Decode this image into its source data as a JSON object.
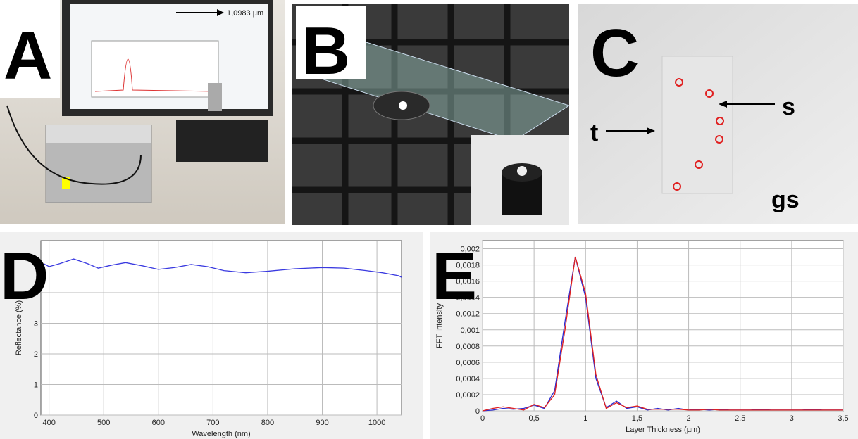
{
  "panels": {
    "A": {
      "label": "A",
      "readout": "1,0983 µm"
    },
    "B": {
      "label": "B"
    },
    "C": {
      "label": "C",
      "t": "t",
      "s": "s",
      "gs": "gs"
    }
  },
  "chart_data": [
    {
      "type": "line",
      "panel_label": "D",
      "x_label": "Wavelength (nm)",
      "y_label": "Reflectance (%)",
      "xlim": [
        385,
        1045
      ],
      "ylim": [
        0,
        5.7
      ],
      "xticks": [
        400,
        500,
        600,
        700,
        800,
        900,
        1000
      ],
      "yticks": [
        0,
        1,
        2,
        3,
        4,
        5
      ],
      "grid": true,
      "x": [
        390,
        400,
        420,
        445,
        470,
        490,
        515,
        540,
        570,
        600,
        630,
        660,
        690,
        720,
        760,
        800,
        850,
        900,
        940,
        980,
        1010,
        1040,
        1045
      ],
      "series": [
        {
          "color": "#3a3ae0",
          "values": [
            4.95,
            4.85,
            4.95,
            5.1,
            4.95,
            4.8,
            4.9,
            4.98,
            4.88,
            4.76,
            4.82,
            4.92,
            4.85,
            4.72,
            4.65,
            4.7,
            4.78,
            4.82,
            4.8,
            4.72,
            4.65,
            4.55,
            4.5
          ]
        }
      ]
    },
    {
      "type": "line",
      "panel_label": "E",
      "x_label": "Layer Thickness (µm)",
      "y_label": "FFT Intensity",
      "xlim": [
        0,
        3.5
      ],
      "ylim": [
        0,
        0.0021
      ],
      "xticks": [
        0,
        {
          "value": 0.5,
          "label": "0,5"
        },
        1,
        {
          "value": 1.5,
          "label": "1,5"
        },
        2,
        {
          "value": 2.5,
          "label": "2,5"
        },
        3,
        {
          "value": 3.5,
          "label": "3,5"
        }
      ],
      "yticks": [
        0,
        {
          "value": 0.0002,
          "label": "0,0002"
        },
        {
          "value": 0.0004,
          "label": "0,0004"
        },
        {
          "value": 0.0006,
          "label": "0,0006"
        },
        {
          "value": 0.0008,
          "label": "0,0008"
        },
        {
          "value": 0.001,
          "label": "0,001"
        },
        {
          "value": 0.0012,
          "label": "0,0012"
        },
        {
          "value": 0.0014,
          "label": "0,0014"
        },
        {
          "value": 0.0016,
          "label": "0,0016"
        },
        {
          "value": 0.0018,
          "label": "0,0018"
        },
        {
          "value": 0.002,
          "label": "0,002"
        }
      ],
      "grid": true,
      "x": [
        0,
        0.1,
        0.2,
        0.3,
        0.4,
        0.5,
        0.6,
        0.7,
        0.8,
        0.9,
        1,
        1.1,
        1.2,
        1.3,
        1.4,
        1.5,
        1.6,
        1.7,
        1.8,
        1.9,
        2,
        2.1,
        2.2,
        2.3,
        2.4,
        2.5,
        2.6,
        2.7,
        2.8,
        2.9,
        3,
        3.1,
        3.2,
        3.3,
        3.4,
        3.5
      ],
      "series": [
        {
          "color": "#2a2ad0",
          "values": [
            0,
            1e-05,
            3e-05,
            2e-05,
            3e-05,
            7e-05,
            3e-05,
            0.00025,
            0.0011,
            0.0019,
            0.0014,
            0.0004,
            4e-05,
            0.00012,
            3e-05,
            5e-05,
            1e-05,
            3e-05,
            1e-05,
            3e-05,
            1e-05,
            2e-05,
            1e-05,
            2e-05,
            1e-05,
            1e-05,
            1e-05,
            2e-05,
            1e-05,
            1e-05,
            1e-05,
            1e-05,
            2e-05,
            1e-05,
            1e-05,
            1e-05
          ]
        },
        {
          "color": "#e02020",
          "values": [
            0,
            3e-05,
            5e-05,
            3e-05,
            1e-05,
            8e-05,
            4e-05,
            0.0002,
            0.001,
            0.0019,
            0.00145,
            0.00045,
            3e-05,
            0.0001,
            4e-05,
            6e-05,
            2e-05,
            2e-05,
            2e-05,
            2e-05,
            1e-05,
            1e-05,
            2e-05,
            1e-05,
            1e-05,
            1e-05,
            1e-05,
            1e-05,
            1e-05,
            1e-05,
            1e-05,
            1e-05,
            1e-05,
            1e-05,
            1e-05,
            1e-05
          ]
        }
      ]
    }
  ]
}
